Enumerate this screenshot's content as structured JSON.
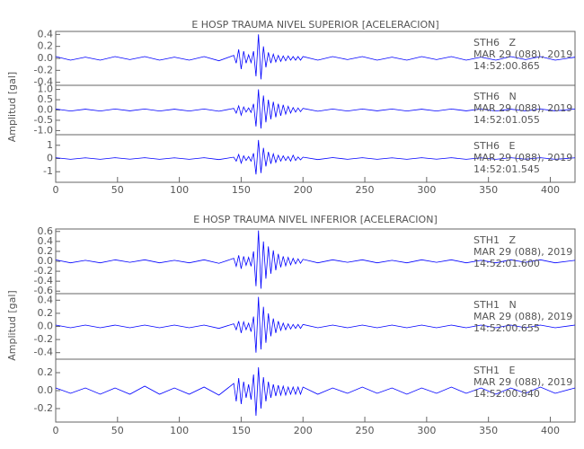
{
  "chart_data": [
    {
      "type": "line",
      "title": "E HOSP TRAUMA NIVEL SUPERIOR [ACELERACION]",
      "ylabel": "Amplitud [gal]",
      "xlim": [
        0,
        420
      ],
      "xticks": [
        0,
        50,
        100,
        150,
        200,
        250,
        300,
        350,
        400
      ],
      "x": [
        0,
        12,
        24,
        36,
        48,
        60,
        72,
        84,
        96,
        108,
        120,
        132,
        144,
        146,
        148,
        150,
        152,
        154,
        156,
        158,
        160,
        162,
        164,
        166,
        168,
        170,
        172,
        174,
        176,
        178,
        180,
        182,
        184,
        186,
        188,
        190,
        192,
        194,
        196,
        198,
        200,
        212,
        224,
        236,
        248,
        260,
        272,
        284,
        296,
        308,
        320,
        332,
        344,
        356,
        368,
        380,
        392,
        404,
        420
      ],
      "panels": [
        {
          "ylim": [
            -0.45,
            0.45
          ],
          "yticks": [
            0.4,
            0.2,
            {
              "value": 0,
              "label": "0.0"
            },
            -0.2,
            -0.4
          ],
          "annotations": [
            "STH6   Z",
            "MAR 29 (088), 2019",
            "14:52:00.865"
          ],
          "series": [
            {
              "color": "#0000ff",
              "values": [
                0.03,
                -0.03,
                0.02,
                -0.03,
                0.03,
                -0.02,
                0.03,
                -0.03,
                0.02,
                -0.03,
                0.03,
                -0.04,
                0.05,
                -0.08,
                0.15,
                -0.18,
                0.12,
                -0.08,
                0.06,
                -0.07,
                0.12,
                -0.3,
                0.4,
                -0.35,
                0.2,
                -0.15,
                0.1,
                -0.08,
                0.07,
                -0.06,
                0.05,
                -0.05,
                0.04,
                -0.04,
                0.04,
                -0.03,
                0.03,
                -0.03,
                0.03,
                -0.03,
                0.03,
                -0.03,
                0.03,
                -0.02,
                0.03,
                -0.03,
                0.02,
                -0.03,
                0.03,
                -0.02,
                0.03,
                -0.03,
                0.02,
                -0.03,
                0.03,
                -0.02,
                0.03,
                -0.03,
                0.02
              ]
            }
          ]
        },
        {
          "ylim": [
            -1.2,
            1.2
          ],
          "yticks": [
            {
              "value": 1,
              "label": "1.0"
            },
            0.5,
            {
              "value": 0,
              "label": "0.0"
            },
            -0.5,
            {
              "value": -1,
              "label": "-1.0"
            }
          ],
          "annotations": [
            "STH6   N",
            "MAR 29 (088), 2019",
            "14:52:01.055"
          ],
          "series": [
            {
              "color": "#0000ff",
              "values": [
                0.05,
                -0.05,
                0.04,
                -0.05,
                0.05,
                -0.04,
                0.05,
                -0.05,
                0.04,
                -0.05,
                0.05,
                -0.06,
                0.08,
                -0.15,
                0.2,
                -0.25,
                0.15,
                -0.1,
                0.1,
                -0.12,
                0.3,
                -0.8,
                1.0,
                -0.9,
                0.7,
                -0.6,
                0.5,
                -0.45,
                0.4,
                -0.35,
                0.3,
                -0.28,
                0.25,
                -0.2,
                0.18,
                -0.15,
                0.12,
                -0.1,
                0.1,
                -0.08,
                0.08,
                -0.06,
                0.05,
                -0.05,
                0.05,
                -0.04,
                0.05,
                -0.05,
                0.04,
                -0.05,
                0.05,
                -0.04,
                0.05,
                -0.05,
                0.04,
                -0.05,
                0.05,
                -0.04,
                0.05
              ]
            }
          ]
        },
        {
          "ylim": [
            -1.8,
            1.8
          ],
          "yticks": [
            1,
            0,
            -1
          ],
          "annotations": [
            "STH6   E",
            "MAR 29 (088), 2019",
            "14:52:01.545"
          ],
          "series": [
            {
              "color": "#0000ff",
              "values": [
                0.06,
                -0.06,
                0.05,
                -0.06,
                0.06,
                -0.05,
                0.06,
                -0.06,
                0.05,
                -0.06,
                0.06,
                -0.08,
                0.1,
                -0.2,
                0.3,
                -0.35,
                0.2,
                -0.15,
                0.15,
                -0.2,
                0.4,
                -1.2,
                1.4,
                -1.1,
                0.8,
                -0.6,
                0.5,
                -0.4,
                0.35,
                -0.3,
                0.25,
                -0.2,
                0.2,
                -0.15,
                0.15,
                -0.2,
                0.25,
                -0.15,
                0.12,
                -0.1,
                0.1,
                -0.08,
                0.07,
                -0.06,
                0.06,
                -0.06,
                0.05,
                -0.06,
                0.06,
                -0.05,
                0.06,
                -0.06,
                0.05,
                -0.06,
                0.06,
                -0.05,
                0.06,
                -0.06,
                0.05
              ]
            }
          ]
        }
      ]
    },
    {
      "type": "line",
      "title": "E HOSP TRAUMA NIVEL INFERIOR [ACELERACION]",
      "ylabel": "Amplitud [gal]",
      "xlim": [
        0,
        420
      ],
      "xticks": [
        0,
        50,
        100,
        150,
        200,
        250,
        300,
        350,
        400
      ],
      "x": [
        0,
        12,
        24,
        36,
        48,
        60,
        72,
        84,
        96,
        108,
        120,
        132,
        144,
        146,
        148,
        150,
        152,
        154,
        156,
        158,
        160,
        162,
        164,
        166,
        168,
        170,
        172,
        174,
        176,
        178,
        180,
        182,
        184,
        186,
        188,
        190,
        192,
        194,
        196,
        198,
        200,
        212,
        224,
        236,
        248,
        260,
        272,
        284,
        296,
        308,
        320,
        332,
        344,
        356,
        368,
        380,
        392,
        404,
        420
      ],
      "panels": [
        {
          "ylim": [
            -0.65,
            0.65
          ],
          "yticks": [
            0.6,
            0.4,
            0.2,
            {
              "value": 0,
              "label": "0.0"
            },
            -0.2,
            -0.4,
            -0.6
          ],
          "annotations": [
            "STH1   Z",
            "MAR 29 (088), 2019",
            "14:52:01.600"
          ],
          "series": [
            {
              "color": "#0000ff",
              "values": [
                0.03,
                -0.03,
                0.02,
                -0.03,
                0.03,
                -0.02,
                0.03,
                -0.03,
                0.02,
                -0.03,
                0.03,
                -0.04,
                0.06,
                -0.1,
                0.12,
                -0.15,
                0.1,
                -0.08,
                0.08,
                -0.1,
                0.2,
                -0.5,
                0.62,
                -0.55,
                0.4,
                -0.35,
                0.3,
                -0.25,
                0.22,
                -0.18,
                0.15,
                -0.12,
                0.1,
                -0.09,
                0.08,
                -0.07,
                0.06,
                -0.05,
                0.05,
                -0.04,
                0.04,
                -0.03,
                0.03,
                -0.02,
                0.03,
                -0.03,
                0.02,
                -0.03,
                0.03,
                -0.02,
                0.03,
                -0.03,
                0.02,
                -0.03,
                0.03,
                -0.02,
                0.03,
                -0.03,
                0.02
              ]
            }
          ]
        },
        {
          "ylim": [
            -0.5,
            0.5
          ],
          "yticks": [
            0.4,
            0.2,
            {
              "value": 0,
              "label": "0.0"
            },
            -0.2,
            -0.4
          ],
          "annotations": [
            "STH1   N",
            "MAR 29 (088), 2019",
            "14:52:00.655"
          ],
          "series": [
            {
              "color": "#0000ff",
              "values": [
                0.02,
                -0.02,
                0.02,
                -0.02,
                0.02,
                -0.02,
                0.02,
                -0.02,
                0.02,
                -0.02,
                0.02,
                -0.03,
                0.04,
                -0.05,
                0.08,
                -0.1,
                0.07,
                -0.05,
                0.05,
                -0.08,
                0.15,
                -0.4,
                0.45,
                -0.35,
                0.3,
                -0.25,
                0.2,
                -0.15,
                0.12,
                -0.1,
                0.08,
                -0.06,
                0.05,
                -0.05,
                0.04,
                -0.04,
                0.03,
                -0.03,
                0.03,
                -0.03,
                0.03,
                -0.02,
                0.02,
                -0.02,
                0.02,
                -0.02,
                0.02,
                -0.02,
                0.02,
                -0.02,
                0.02,
                -0.02,
                0.02,
                -0.02,
                0.02,
                -0.02,
                0.02,
                -0.02,
                0.02
              ]
            }
          ]
        },
        {
          "ylim": [
            -0.35,
            0.35
          ],
          "yticks": [
            0.2,
            {
              "value": 0,
              "label": "0.0"
            },
            -0.2
          ],
          "annotations": [
            "STH1   E",
            "MAR 29 (088), 2019",
            "14:52:00.840"
          ],
          "series": [
            {
              "color": "#0000ff",
              "values": [
                0.03,
                -0.03,
                0.03,
                -0.04,
                0.03,
                -0.04,
                0.05,
                -0.04,
                0.03,
                -0.04,
                0.04,
                -0.05,
                0.08,
                -0.12,
                0.14,
                -0.15,
                0.1,
                -0.08,
                0.07,
                -0.1,
                0.18,
                -0.28,
                0.26,
                -0.2,
                0.15,
                -0.12,
                0.1,
                -0.08,
                0.07,
                -0.06,
                0.06,
                -0.05,
                0.05,
                -0.05,
                0.04,
                -0.04,
                0.04,
                -0.04,
                0.04,
                -0.04,
                0.04,
                -0.04,
                0.03,
                -0.03,
                0.04,
                -0.03,
                0.03,
                -0.04,
                0.03,
                -0.03,
                0.04,
                -0.03,
                0.03,
                -0.04,
                0.03,
                -0.03,
                0.04,
                -0.03,
                0.03
              ]
            }
          ]
        }
      ]
    }
  ]
}
